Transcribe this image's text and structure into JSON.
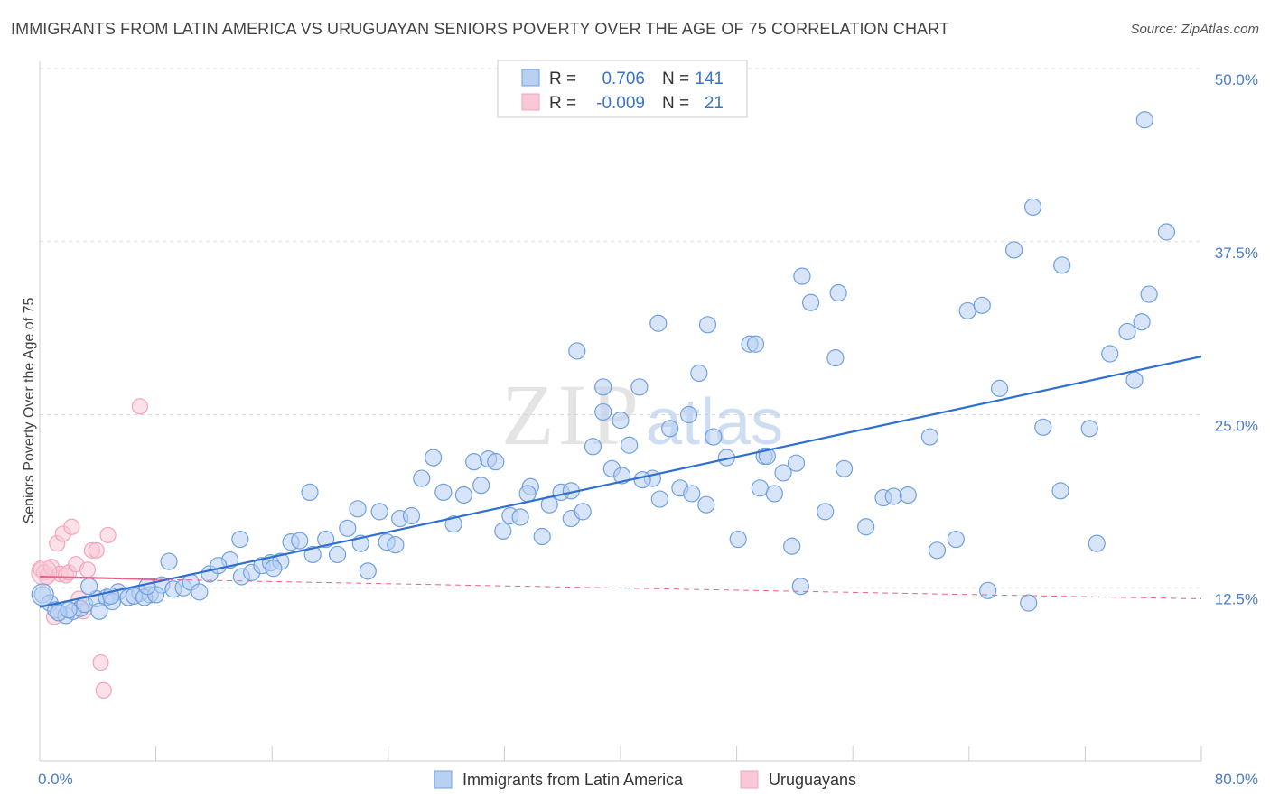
{
  "title": "IMMIGRANTS FROM LATIN AMERICA VS URUGUAYAN SENIORS POVERTY OVER THE AGE OF 75 CORRELATION CHART",
  "source": "Source: ZipAtlas.com",
  "watermark": {
    "zip": "ZIP",
    "atlas": "atlas"
  },
  "colors": {
    "blue": "#6fa0e0",
    "blue_line": "#2f6fcf",
    "pink": "#f3a3bb",
    "pink_line": "#e8638a",
    "grid": "#dddddd"
  },
  "legend": {
    "rows": [
      {
        "r_label": "R =",
        "r_value": "0.706",
        "n_label": "N =",
        "n_value": "141"
      },
      {
        "r_label": "R =",
        "r_value": "-0.009",
        "n_label": "N =",
        "n_value": "21"
      }
    ]
  },
  "bottom_legend": [
    "Immigrants from Latin America",
    "Uruguayans"
  ],
  "chart_data": {
    "type": "scatter",
    "title": "IMMIGRANTS FROM LATIN AMERICA VS URUGUAYAN SENIORS POVERTY OVER THE AGE OF 75 CORRELATION CHART",
    "xlabel": "",
    "ylabel": "Seniors Poverty Over the Age of 75",
    "xlim": [
      0,
      80
    ],
    "ylim": [
      0,
      50
    ],
    "x_tick_labels": [
      "0.0%",
      "80.0%"
    ],
    "y_ticks": [
      12.5,
      25.0,
      37.5,
      50.0
    ],
    "y_tick_labels": [
      "12.5%",
      "25.0%",
      "37.5%",
      "50.0%"
    ],
    "grid": true,
    "legend_position": "top-center",
    "series": [
      {
        "name": "Immigrants from Latin America",
        "color": "#6fa0e0",
        "trend": {
          "x": [
            0,
            80
          ],
          "y": [
            11.1,
            29.2
          ]
        },
        "points": [
          [
            0.2,
            12.0
          ],
          [
            0.7,
            11.4
          ],
          [
            1.1,
            10.9
          ],
          [
            1.8,
            10.5
          ],
          [
            2.3,
            10.8
          ],
          [
            2.8,
            11.0
          ],
          [
            3.1,
            11.3
          ],
          [
            3.9,
            11.7
          ],
          [
            4.6,
            11.8
          ],
          [
            5.4,
            12.2
          ],
          [
            6.1,
            11.8
          ],
          [
            6.9,
            12.1
          ],
          [
            7.6,
            12.0
          ],
          [
            8.4,
            12.7
          ],
          [
            9.2,
            12.4
          ],
          [
            1.3,
            10.7
          ],
          [
            2.0,
            10.9
          ],
          [
            4.1,
            10.8
          ],
          [
            5.0,
            11.5
          ],
          [
            6.5,
            11.9
          ],
          [
            7.2,
            11.8
          ],
          [
            8.0,
            12.0
          ],
          [
            9.9,
            12.5
          ],
          [
            10.4,
            12.9
          ],
          [
            11.0,
            12.2
          ],
          [
            11.7,
            13.5
          ],
          [
            13.1,
            14.5
          ],
          [
            13.9,
            13.3
          ],
          [
            14.6,
            13.6
          ],
          [
            15.3,
            14.1
          ],
          [
            15.9,
            14.3
          ],
          [
            16.6,
            14.4
          ],
          [
            17.3,
            15.8
          ],
          [
            17.9,
            15.9
          ],
          [
            18.8,
            14.9
          ],
          [
            19.7,
            16.0
          ],
          [
            20.5,
            14.9
          ],
          [
            21.2,
            16.8
          ],
          [
            21.9,
            18.2
          ],
          [
            22.6,
            13.7
          ],
          [
            22.1,
            15.7
          ],
          [
            23.4,
            18.0
          ],
          [
            23.9,
            15.8
          ],
          [
            24.8,
            17.5
          ],
          [
            25.6,
            17.7
          ],
          [
            26.3,
            20.4
          ],
          [
            27.1,
            21.9
          ],
          [
            27.8,
            19.4
          ],
          [
            28.5,
            17.1
          ],
          [
            29.2,
            19.2
          ],
          [
            29.9,
            21.6
          ],
          [
            30.4,
            19.9
          ],
          [
            30.9,
            21.8
          ],
          [
            31.4,
            21.6
          ],
          [
            31.9,
            16.6
          ],
          [
            32.4,
            17.7
          ],
          [
            33.1,
            17.6
          ],
          [
            33.8,
            19.8
          ],
          [
            34.6,
            16.2
          ],
          [
            35.1,
            18.5
          ],
          [
            35.9,
            19.4
          ],
          [
            36.6,
            17.5
          ],
          [
            37.4,
            18.0
          ],
          [
            38.1,
            22.7
          ],
          [
            38.8,
            25.2
          ],
          [
            39.4,
            21.1
          ],
          [
            40.1,
            20.6
          ],
          [
            40.6,
            22.8
          ],
          [
            41.3,
            27.0
          ],
          [
            42.2,
            20.4
          ],
          [
            42.7,
            18.9
          ],
          [
            43.4,
            24.0
          ],
          [
            44.1,
            19.7
          ],
          [
            44.9,
            19.3
          ],
          [
            45.4,
            28.0
          ],
          [
            45.9,
            18.5
          ],
          [
            46.4,
            23.4
          ],
          [
            47.3,
            21.9
          ],
          [
            48.1,
            16.0
          ],
          [
            48.9,
            30.1
          ],
          [
            49.6,
            19.7
          ],
          [
            49.9,
            22.0
          ],
          [
            50.6,
            19.3
          ],
          [
            51.2,
            20.8
          ],
          [
            51.8,
            15.5
          ],
          [
            52.4,
            12.6
          ],
          [
            53.1,
            33.1
          ],
          [
            54.1,
            18.0
          ],
          [
            54.8,
            29.1
          ],
          [
            55.4,
            21.1
          ],
          [
            56.9,
            16.9
          ],
          [
            58.1,
            19.0
          ],
          [
            58.8,
            19.1
          ],
          [
            59.8,
            19.2
          ],
          [
            61.3,
            23.4
          ],
          [
            61.8,
            15.2
          ],
          [
            63.1,
            16.0
          ],
          [
            65.3,
            12.3
          ],
          [
            66.1,
            26.9
          ],
          [
            67.1,
            36.9
          ],
          [
            68.1,
            11.4
          ],
          [
            69.1,
            24.1
          ],
          [
            70.3,
            19.5
          ],
          [
            72.3,
            24.0
          ],
          [
            72.8,
            15.7
          ],
          [
            73.7,
            29.4
          ],
          [
            74.9,
            31.0
          ],
          [
            75.4,
            27.5
          ],
          [
            75.9,
            31.7
          ],
          [
            76.4,
            33.7
          ],
          [
            77.6,
            38.2
          ],
          [
            76.1,
            46.3
          ],
          [
            68.4,
            40.0
          ],
          [
            63.9,
            32.5
          ],
          [
            52.1,
            21.5
          ],
          [
            50.1,
            22.0
          ],
          [
            52.5,
            35.0
          ],
          [
            55.0,
            33.8
          ],
          [
            37.0,
            29.6
          ],
          [
            42.6,
            31.6
          ],
          [
            46.0,
            31.5
          ],
          [
            49.3,
            30.1
          ],
          [
            44.7,
            25.0
          ],
          [
            36.6,
            19.5
          ],
          [
            33.6,
            19.3
          ],
          [
            38.8,
            27.0
          ],
          [
            41.5,
            20.3
          ],
          [
            40.0,
            24.6
          ],
          [
            24.5,
            15.6
          ],
          [
            18.6,
            19.4
          ],
          [
            13.8,
            16.0
          ],
          [
            16.1,
            13.9
          ],
          [
            8.9,
            14.4
          ],
          [
            7.4,
            12.6
          ],
          [
            12.3,
            14.1
          ],
          [
            4.9,
            11.9
          ],
          [
            3.4,
            12.6
          ],
          [
            70.4,
            35.8
          ],
          [
            64.9,
            32.9
          ]
        ]
      },
      {
        "name": "Uruguayans",
        "color": "#f3a3bb",
        "trend": {
          "x": [
            0,
            8.1,
            80
          ],
          "y": [
            13.3,
            13.1,
            11.7
          ]
        },
        "points": [
          [
            0.1,
            13.8
          ],
          [
            0.3,
            13.6
          ],
          [
            0.5,
            13.3
          ],
          [
            0.8,
            14.0
          ],
          [
            1.0,
            10.4
          ],
          [
            1.2,
            15.7
          ],
          [
            1.4,
            13.5
          ],
          [
            1.6,
            16.4
          ],
          [
            1.8,
            13.4
          ],
          [
            2.0,
            13.6
          ],
          [
            2.2,
            16.9
          ],
          [
            2.5,
            14.2
          ],
          [
            2.7,
            11.7
          ],
          [
            3.0,
            10.8
          ],
          [
            3.3,
            13.8
          ],
          [
            3.6,
            15.2
          ],
          [
            3.9,
            15.2
          ],
          [
            4.2,
            7.1
          ],
          [
            4.4,
            5.1
          ],
          [
            4.7,
            16.3
          ],
          [
            6.9,
            25.6
          ]
        ]
      }
    ]
  }
}
